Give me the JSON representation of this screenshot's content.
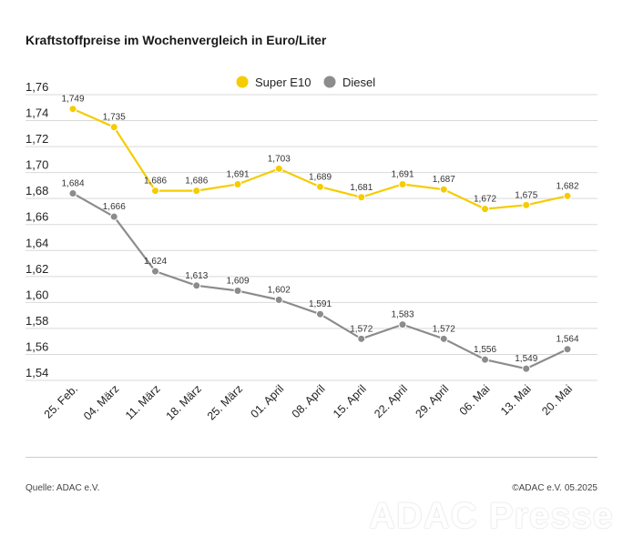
{
  "title": "Kraftstoffpreise im Wochenvergleich in Euro/Liter",
  "source": "Quelle: ADAC e.V.",
  "copyright": "©ADAC e.V. 05.2025",
  "watermark": "ADAC Presse",
  "chart_data": {
    "type": "line",
    "title": "Kraftstoffpreise im Wochenvergleich in Euro/Liter",
    "xlabel": "",
    "ylabel": "",
    "categories": [
      "25. Feb.",
      "04. März",
      "11. März",
      "18. März",
      "25. März",
      "01. April",
      "08. April",
      "15. April",
      "22. April",
      "29. April",
      "06. Mai",
      "13. Mai",
      "20. Mai"
    ],
    "series": [
      {
        "name": "Super E10",
        "color": "#f5cc00",
        "values": [
          1.749,
          1.735,
          1.686,
          1.686,
          1.691,
          1.703,
          1.689,
          1.681,
          1.691,
          1.687,
          1.672,
          1.675,
          1.682
        ],
        "labels": [
          "1,749",
          "1,735",
          "1,686",
          "1,686",
          "1,691",
          "1,703",
          "1,689",
          "1,681",
          "1,691",
          "1,687",
          "1,672",
          "1,675",
          "1,682"
        ]
      },
      {
        "name": "Diesel",
        "color": "#8c8c8c",
        "values": [
          1.684,
          1.666,
          1.624,
          1.613,
          1.609,
          1.602,
          1.591,
          1.572,
          1.583,
          1.572,
          1.556,
          1.549,
          1.564
        ],
        "labels": [
          "1,684",
          "1,666",
          "1,624",
          "1,613",
          "1,609",
          "1,602",
          "1,591",
          "1,572",
          "1,583",
          "1,572",
          "1,556",
          "1,549",
          "1,564"
        ]
      }
    ],
    "ylim": [
      1.54,
      1.76
    ],
    "yticks": [
      1.54,
      1.56,
      1.58,
      1.6,
      1.62,
      1.64,
      1.66,
      1.68,
      1.7,
      1.72,
      1.74,
      1.76
    ],
    "ytick_labels": [
      "1,54",
      "1,56",
      "1,58",
      "1,60",
      "1,62",
      "1,64",
      "1,66",
      "1,68",
      "1,70",
      "1,72",
      "1,74",
      "1,76"
    ],
    "grid": true,
    "legend": "top-center"
  }
}
